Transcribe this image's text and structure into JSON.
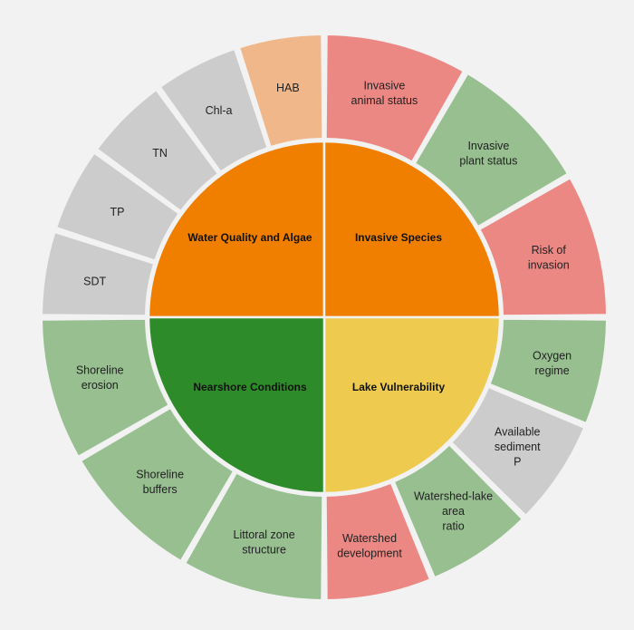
{
  "colors": {
    "background": "#f2f2f2",
    "orange": "#f07f00",
    "yellow": "#eecb4f",
    "dark_green": "#2e8b2a",
    "red": "#ec8883",
    "green": "#97bf90",
    "gray": "#cccccc",
    "peach": "#f0b88a"
  },
  "quadrants": [
    {
      "id": "wq",
      "label": "Water Quality and Algae",
      "color": "orange"
    },
    {
      "id": "is",
      "label": "Invasive Species",
      "color": "orange"
    },
    {
      "id": "lv",
      "label": "Lake Vulnerability",
      "color": "yellow"
    },
    {
      "id": "nc",
      "label": "Nearshore Conditions",
      "color": "dark_green"
    }
  ],
  "segments": [
    {
      "quadrant": "is",
      "lines": [
        "Invasive",
        "animal status"
      ],
      "color": "red"
    },
    {
      "quadrant": "is",
      "lines": [
        "Invasive",
        "plant status"
      ],
      "color": "green"
    },
    {
      "quadrant": "is",
      "lines": [
        "Risk of",
        "invasion"
      ],
      "color": "red"
    },
    {
      "quadrant": "lv",
      "lines": [
        "Oxygen",
        "regime"
      ],
      "color": "green"
    },
    {
      "quadrant": "lv",
      "lines": [
        "Available",
        "sediment",
        "P"
      ],
      "color": "gray"
    },
    {
      "quadrant": "lv",
      "lines": [
        "Watershed-lake",
        "area",
        "ratio"
      ],
      "color": "green"
    },
    {
      "quadrant": "lv",
      "lines": [
        "Watershed",
        "development"
      ],
      "color": "red"
    },
    {
      "quadrant": "nc",
      "lines": [
        "Littoral zone",
        "structure"
      ],
      "color": "green"
    },
    {
      "quadrant": "nc",
      "lines": [
        "Shoreline",
        "buffers"
      ],
      "color": "green"
    },
    {
      "quadrant": "nc",
      "lines": [
        "Shoreline",
        "erosion"
      ],
      "color": "green"
    },
    {
      "quadrant": "wq",
      "lines": [
        "SDT"
      ],
      "color": "gray"
    },
    {
      "quadrant": "wq",
      "lines": [
        "TP"
      ],
      "color": "gray"
    },
    {
      "quadrant": "wq",
      "lines": [
        "TN"
      ],
      "color": "gray"
    },
    {
      "quadrant": "wq",
      "lines": [
        "Chl-a"
      ],
      "color": "gray"
    },
    {
      "quadrant": "wq",
      "lines": [
        "HAB"
      ],
      "color": "peach"
    }
  ]
}
